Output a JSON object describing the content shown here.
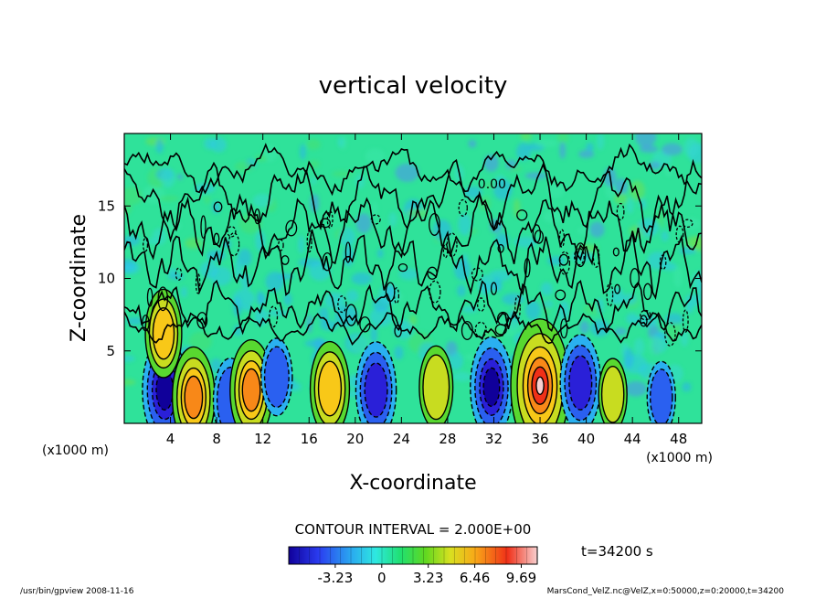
{
  "chart_data": {
    "type": "heatmap",
    "title": "vertical velocity",
    "xlabel": "X-coordinate",
    "ylabel": "Z-coordinate",
    "x_units_left": "(x1000 m)",
    "x_units_right": "(x1000 m)",
    "x_ticks": [
      "4",
      "8",
      "12",
      "16",
      "20",
      "24",
      "28",
      "32",
      "36",
      "40",
      "44",
      "48"
    ],
    "x_tick_values": [
      4,
      8,
      12,
      16,
      20,
      24,
      28,
      32,
      36,
      40,
      44,
      48
    ],
    "y_ticks": [
      "5",
      "10",
      "15"
    ],
    "y_tick_values": [
      5,
      10,
      15
    ],
    "xlim": [
      0,
      50
    ],
    "ylim": [
      0,
      20
    ],
    "contour_interval_label": "CONTOUR INTERVAL = 2.000E+00",
    "contour_label": "0.00",
    "contour_label_position": [
      24,
      16.2
    ],
    "time_label": "t=34200 s",
    "colorbar_ticks": [
      "-3.23",
      "0",
      "3.23",
      "6.46",
      "9.69"
    ],
    "colorbar_tick_values": [
      -3.23,
      0,
      3.23,
      6.46,
      9.69
    ],
    "colorbar_range": [
      -6.46,
      10.8
    ],
    "features": [
      {
        "x": 3.5,
        "z": 2.3,
        "sign": "down",
        "amplitude": -6.5
      },
      {
        "x": 3.4,
        "z": 6.2,
        "sign": "up",
        "amplitude": 4.5
      },
      {
        "x": 6.0,
        "z": 1.8,
        "sign": "up",
        "amplitude": 6.0
      },
      {
        "x": 9.2,
        "z": 1.6,
        "sign": "down",
        "amplitude": -4.0
      },
      {
        "x": 11.0,
        "z": 2.3,
        "sign": "up",
        "amplitude": 6.0
      },
      {
        "x": 13.2,
        "z": 3.2,
        "sign": "down",
        "amplitude": -3.2
      },
      {
        "x": 17.8,
        "z": 2.4,
        "sign": "up",
        "amplitude": 5.2
      },
      {
        "x": 21.8,
        "z": 2.3,
        "sign": "down",
        "amplitude": -5.5
      },
      {
        "x": 27.0,
        "z": 2.5,
        "sign": "up",
        "amplitude": 3.8
      },
      {
        "x": 31.8,
        "z": 2.5,
        "sign": "down",
        "amplitude": -6.0
      },
      {
        "x": 36.0,
        "z": 2.6,
        "sign": "up",
        "amplitude": 10.0
      },
      {
        "x": 39.5,
        "z": 2.8,
        "sign": "down",
        "amplitude": -5.5
      },
      {
        "x": 42.3,
        "z": 2.0,
        "sign": "up",
        "amplitude": 2.5
      },
      {
        "x": 46.5,
        "z": 1.8,
        "sign": "down",
        "amplitude": -2.5
      }
    ]
  },
  "footer": {
    "left": "/usr/bin/gpview   2008-11-16",
    "right": "MarsCond_VelZ.nc@VelZ,x=0:50000,z=0:20000,t=34200"
  }
}
